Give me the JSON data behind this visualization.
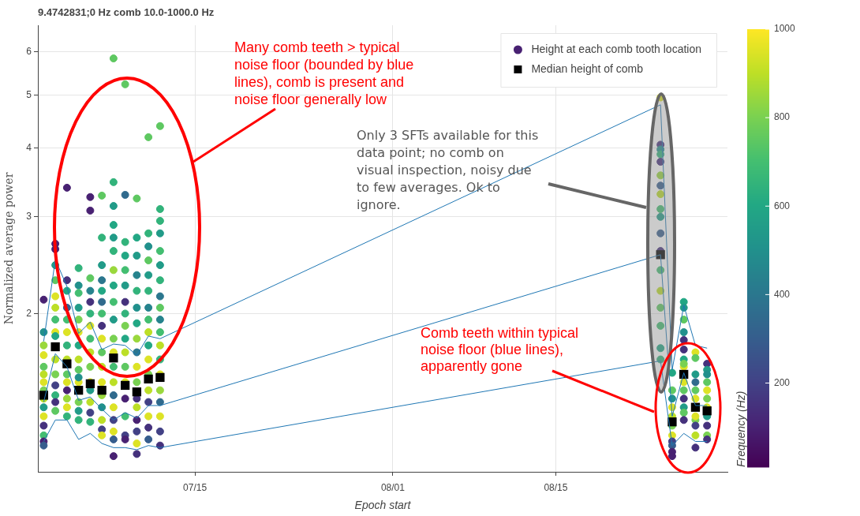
{
  "chart_data": {
    "type": "scatter",
    "title": "9.4742831;0 Hz comb 10.0-1000.0 Hz",
    "xlabel": "Epoch start",
    "ylabel": "Normalized average power",
    "clabel": "Frequency (Hz)",
    "log": "y",
    "grid": true,
    "legend": "top right",
    "xlim": [
      "--07-01T12:00",
      "--08-29T18:00"
    ],
    "xticks": [
      {
        "value": "--07-15",
        "label": "07/15"
      },
      {
        "value": "--08-01",
        "label": "08/01"
      },
      {
        "value": "--08-15",
        "label": "08/15"
      }
    ],
    "ylim": [
      1.03,
      6.7
    ],
    "yticks": [
      2,
      3,
      4,
      5,
      6
    ],
    "clim": [
      10,
      1000
    ],
    "cticks": [
      200,
      400,
      600,
      800,
      1000
    ],
    "annotations": [
      "Many comb teeth > typical noise floor (bounded by blue lines), comb is present and noise floor generally low",
      "Only 3 SFTs available for this data point; no comb on visual inspection, noisy due to few averages. Ok to ignore.",
      "Comb teeth within typical noise floor (blue lines), apparently gone"
    ],
    "series": [
      {
        "name": "Height at each comb tooth location",
        "type": "scatter",
        "marker": "circle",
        "x": [
          "--07-02",
          "--07-02",
          "--07-02",
          "--07-02",
          "--07-02",
          "--07-02",
          "--07-02",
          "--07-02",
          "--07-02",
          "--07-02",
          "--07-02",
          "--07-02",
          "--07-02",
          "--07-02",
          "--07-02",
          "--07-03",
          "--07-03",
          "--07-03",
          "--07-03",
          "--07-03",
          "--07-03",
          "--07-03",
          "--07-03",
          "--07-03",
          "--07-03",
          "--07-03",
          "--07-03",
          "--07-03",
          "--07-03",
          "--07-03",
          "--07-04",
          "--07-04",
          "--07-04",
          "--07-04",
          "--07-04",
          "--07-04",
          "--07-04",
          "--07-04",
          "--07-04",
          "--07-04",
          "--07-04",
          "--07-04",
          "--07-04",
          "--07-04",
          "--07-05",
          "--07-05",
          "--07-05",
          "--07-05",
          "--07-05",
          "--07-05",
          "--07-05",
          "--07-05",
          "--07-05",
          "--07-05",
          "--07-05",
          "--07-05",
          "--07-05",
          "--07-05",
          "--07-06",
          "--07-06",
          "--07-06",
          "--07-06",
          "--07-06",
          "--07-06",
          "--07-06",
          "--07-06",
          "--07-06",
          "--07-06",
          "--07-06",
          "--07-06",
          "--07-06",
          "--07-06",
          "--07-06",
          "--07-07",
          "--07-07",
          "--07-07",
          "--07-07",
          "--07-07",
          "--07-07",
          "--07-07",
          "--07-07",
          "--07-07",
          "--07-07",
          "--07-07",
          "--07-07",
          "--07-07",
          "--07-07",
          "--07-07",
          "--07-07",
          "--07-07",
          "--07-08",
          "--07-08",
          "--07-08",
          "--07-08",
          "--07-08",
          "--07-08",
          "--07-08",
          "--07-08",
          "--07-08",
          "--07-08",
          "--07-08",
          "--07-08",
          "--07-08",
          "--07-08",
          "--07-08",
          "--07-08",
          "--07-08",
          "--07-08",
          "--07-08",
          "--07-08",
          "--07-09",
          "--07-09",
          "--07-09",
          "--07-09",
          "--07-09",
          "--07-09",
          "--07-09",
          "--07-09",
          "--07-09",
          "--07-09",
          "--07-09",
          "--07-09",
          "--07-09",
          "--07-09",
          "--07-09",
          "--07-09",
          "--07-09",
          "--07-10",
          "--07-10",
          "--07-10",
          "--07-10",
          "--07-10",
          "--07-10",
          "--07-10",
          "--07-10",
          "--07-10",
          "--07-10",
          "--07-10",
          "--07-10",
          "--07-10",
          "--07-10",
          "--07-10",
          "--07-10",
          "--07-10",
          "--07-11",
          "--07-11",
          "--07-11",
          "--07-11",
          "--07-11",
          "--07-11",
          "--07-11",
          "--07-11",
          "--07-11",
          "--07-11",
          "--07-11",
          "--07-11",
          "--07-11",
          "--07-11",
          "--07-11",
          "--07-11",
          "--07-11",
          "--07-12",
          "--07-12",
          "--07-12",
          "--07-12",
          "--07-12",
          "--07-12",
          "--07-12",
          "--07-12",
          "--07-12",
          "--07-12",
          "--07-12",
          "--07-12",
          "--07-12",
          "--07-12",
          "--07-12",
          "--07-12",
          "--07-12",
          "--07-12",
          "--07-12",
          "--08-24",
          "--08-24",
          "--08-24",
          "--08-24",
          "--08-24",
          "--08-24",
          "--08-24",
          "--08-24",
          "--08-24",
          "--08-24",
          "--08-24",
          "--08-24",
          "--08-24",
          "--08-24",
          "--08-24",
          "--08-24",
          "--08-24",
          "--08-24",
          "--08-25",
          "--08-25",
          "--08-25",
          "--08-25",
          "--08-25",
          "--08-25",
          "--08-25",
          "--08-25",
          "--08-25",
          "--08-25",
          "--08-25",
          "--08-26",
          "--08-26",
          "--08-26",
          "--08-26",
          "--08-26",
          "--08-26",
          "--08-26",
          "--08-26",
          "--08-26",
          "--08-26",
          "--08-26",
          "--08-26",
          "--08-26",
          "--08-26",
          "--08-26",
          "--08-27",
          "--08-27",
          "--08-27",
          "--08-27",
          "--08-27",
          "--08-27",
          "--08-27",
          "--08-27",
          "--08-27",
          "--08-27",
          "--08-27",
          "--08-28",
          "--08-28",
          "--08-28",
          "--08-28",
          "--08-28",
          "--08-28",
          "--08-28",
          "--08-28",
          "--08-28",
          "--08-28",
          "--08-28"
        ],
        "values": [
          2.12,
          1.85,
          1.75,
          1.68,
          1.6,
          1.55,
          1.5,
          1.45,
          1.4,
          1.35,
          1.3,
          1.25,
          1.2,
          1.17,
          1.15,
          2.68,
          2.62,
          2.45,
          2.3,
          2.15,
          2.05,
          1.95,
          1.85,
          1.82,
          1.65,
          1.55,
          1.48,
          1.42,
          1.38,
          1.33,
          3.39,
          2.3,
          2.2,
          2.05,
          1.95,
          1.85,
          1.75,
          1.65,
          1.55,
          1.5,
          1.45,
          1.4,
          1.35,
          1.3,
          2.42,
          2.25,
          2.18,
          2.05,
          1.95,
          1.85,
          1.75,
          1.65,
          1.58,
          1.5,
          1.53,
          1.38,
          1.33,
          1.28,
          3.26,
          3.08,
          2.32,
          2.2,
          2.1,
          2.0,
          1.9,
          1.8,
          1.7,
          1.6,
          1.5,
          1.45,
          1.38,
          1.32,
          1.27,
          3.28,
          2.75,
          2.45,
          2.3,
          2.2,
          2.1,
          2.0,
          1.9,
          1.8,
          1.7,
          1.6,
          1.5,
          1.42,
          1.35,
          1.28,
          1.23,
          1.2,
          5.83,
          3.47,
          3.14,
          2.9,
          2.75,
          2.6,
          2.4,
          2.25,
          2.1,
          1.95,
          1.8,
          1.7,
          1.6,
          1.5,
          1.42,
          1.35,
          1.28,
          1.22,
          1.18,
          1.1,
          5.23,
          3.29,
          2.7,
          2.55,
          2.4,
          2.25,
          2.1,
          2.0,
          1.9,
          1.8,
          1.7,
          1.6,
          1.5,
          1.4,
          1.3,
          1.2,
          1.18,
          3.24,
          2.75,
          2.55,
          2.35,
          2.2,
          2.05,
          1.92,
          1.8,
          1.7,
          1.6,
          1.5,
          1.4,
          1.35,
          1.28,
          1.22,
          1.16,
          1.11,
          4.19,
          2.8,
          2.65,
          2.5,
          2.35,
          2.2,
          2.05,
          1.95,
          1.85,
          1.75,
          1.65,
          1.55,
          1.45,
          1.38,
          1.3,
          1.24,
          1.18,
          4.39,
          3.1,
          2.95,
          2.8,
          2.6,
          2.45,
          2.3,
          2.15,
          2.05,
          1.95,
          1.85,
          1.75,
          1.65,
          1.55,
          1.45,
          1.38,
          1.3,
          1.22,
          1.15,
          4.95,
          4.06,
          3.98,
          3.9,
          3.78,
          3.57,
          3.42,
          3.3,
          3.1,
          3.0,
          2.8,
          2.6,
          2.4,
          2.2,
          2.05,
          1.9,
          1.73,
          1.65,
          1.56,
          1.45,
          1.4,
          1.35,
          1.3,
          1.25,
          1.2,
          1.17,
          1.15,
          1.12,
          1.1,
          2.1,
          2.05,
          1.95,
          1.85,
          1.79,
          1.72,
          1.65,
          1.6,
          1.62,
          1.5,
          1.45,
          1.4,
          1.35,
          1.32,
          1.28,
          1.7,
          1.66,
          1.55,
          1.5,
          1.45,
          1.4,
          1.28,
          1.3,
          1.25,
          1.2,
          1.14,
          1.62,
          1.58,
          1.55,
          1.5,
          1.45,
          1.4,
          1.35,
          1.3,
          1.25,
          1.2,
          1.18
        ],
        "cvalues": [
          100,
          500,
          850,
          950,
          750,
          900,
          950,
          800,
          900,
          550,
          950,
          150,
          700,
          100,
          300,
          100,
          100,
          550,
          750,
          950,
          900,
          700,
          950,
          600,
          900,
          800,
          200,
          650,
          150,
          750,
          100,
          150,
          600,
          300,
          700,
          950,
          650,
          900,
          750,
          950,
          100,
          850,
          950,
          650,
          650,
          500,
          700,
          550,
          800,
          950,
          600,
          900,
          750,
          950,
          500,
          800,
          550,
          650,
          100,
          100,
          750,
          450,
          150,
          650,
          950,
          700,
          900,
          800,
          950,
          550,
          900,
          200,
          650,
          750,
          650,
          550,
          400,
          600,
          350,
          700,
          150,
          950,
          750,
          900,
          950,
          850,
          500,
          900,
          200,
          950,
          750,
          650,
          550,
          600,
          550,
          650,
          850,
          600,
          700,
          550,
          800,
          950,
          700,
          900,
          350,
          950,
          200,
          950,
          300,
          100,
          750,
          350,
          650,
          600,
          700,
          550,
          150,
          650,
          800,
          600,
          900,
          750,
          950,
          100,
          700,
          200,
          100,
          750,
          600,
          550,
          450,
          650,
          500,
          600,
          850,
          400,
          950,
          800,
          150,
          900,
          100,
          200,
          950,
          150,
          750,
          650,
          500,
          750,
          550,
          650,
          450,
          700,
          900,
          600,
          950,
          800,
          900,
          200,
          950,
          150,
          300,
          750,
          650,
          650,
          550,
          700,
          550,
          650,
          400,
          750,
          450,
          700,
          900,
          650,
          950,
          850,
          350,
          950,
          200,
          150,
          950,
          150,
          500,
          650,
          150,
          850,
          300,
          900,
          700,
          550,
          300,
          150,
          700,
          900,
          750,
          700,
          600,
          650,
          600,
          750,
          500,
          950,
          900,
          800,
          950,
          200,
          300,
          100,
          100,
          600,
          550,
          750,
          500,
          150,
          150,
          600,
          950,
          800,
          950,
          750,
          150,
          550,
          750,
          150,
          950,
          750,
          550,
          350,
          750,
          950,
          800,
          950,
          200,
          900,
          150,
          150,
          550,
          500,
          750,
          950,
          800,
          950,
          550,
          150,
          800,
          150
        ],
        "colors": [
          "#482172",
          "#21908c",
          "#9ad83c",
          "#dde325",
          "#5ec861",
          "#bcdf26",
          "#dde325",
          "#79d152",
          "#bcdf26",
          "#219b88",
          "#dde325",
          "#45317c",
          "#43be71",
          "#482172",
          "#365d8d",
          "#482172",
          "#482172",
          "#219b88",
          "#5ec861",
          "#dde325",
          "#bcdf26",
          "#43be71",
          "#dde325",
          "#22a784",
          "#bcdf26",
          "#79d152",
          "#424185",
          "#32b37b",
          "#45317c",
          "#5ec861",
          "#482172",
          "#45317c",
          "#22a784",
          "#365d8d",
          "#43be71",
          "#dde325",
          "#32b37b",
          "#bcdf26",
          "#5ec861",
          "#dde325",
          "#482172",
          "#9ad83c",
          "#dde325",
          "#32b37b",
          "#32b37b",
          "#21908c",
          "#43be71",
          "#219b88",
          "#79d152",
          "#dde325",
          "#22a784",
          "#bcdf26",
          "#5ec861",
          "#dde325",
          "#21908c",
          "#79d152",
          "#219b88",
          "#32b37b",
          "#482172",
          "#482172",
          "#5ec861",
          "#26838d",
          "#45317c",
          "#32b37b",
          "#dde325",
          "#43be71",
          "#bcdf26",
          "#79d152",
          "#dde325",
          "#219b88",
          "#bcdf26",
          "#424185",
          "#32b37b",
          "#5ec861",
          "#32b37b",
          "#219b88",
          "#2b778e",
          "#22a784",
          "#306a8d",
          "#43be71",
          "#45317c",
          "#dde325",
          "#5ec861",
          "#bcdf26",
          "#dde325",
          "#9ad83c",
          "#21908c",
          "#bcdf26",
          "#424185",
          "#dde325",
          "#5ec861",
          "#32b37b",
          "#219b88",
          "#22a784",
          "#219b88",
          "#32b37b",
          "#9ad83c",
          "#22a784",
          "#43be71",
          "#219b88",
          "#79d152",
          "#dde325",
          "#43be71",
          "#bcdf26",
          "#306a8d",
          "#dde325",
          "#424185",
          "#dde325",
          "#365d8d",
          "#482172",
          "#5ec861",
          "#306a8d",
          "#32b37b",
          "#22a784",
          "#43be71",
          "#219b88",
          "#45317c",
          "#32b37b",
          "#79d152",
          "#22a784",
          "#bcdf26",
          "#5ec861",
          "#dde325",
          "#482172",
          "#43be71",
          "#424185",
          "#482172",
          "#5ec861",
          "#22a784",
          "#219b88",
          "#26838d",
          "#32b37b",
          "#21908c",
          "#22a784",
          "#9ad83c",
          "#2b778e",
          "#dde325",
          "#79d152",
          "#45317c",
          "#bcdf26",
          "#482172",
          "#424185",
          "#dde325",
          "#45317c",
          "#5ec861",
          "#32b37b",
          "#21908c",
          "#5ec861",
          "#219b88",
          "#32b37b",
          "#26838d",
          "#43be71",
          "#bcdf26",
          "#22a784",
          "#dde325",
          "#79d152",
          "#bcdf26",
          "#424185",
          "#dde325",
          "#45317c",
          "#365d8d",
          "#5ec861",
          "#32b37b",
          "#32b37b",
          "#219b88",
          "#43be71",
          "#219b88",
          "#32b37b",
          "#2b778e",
          "#5ec861",
          "#26838d",
          "#43be71",
          "#bcdf26",
          "#32b37b",
          "#dde325",
          "#9ad83c",
          "#306a8d",
          "#dde325",
          "#424185",
          "#45317c",
          "#dde325",
          "#45317c",
          "#21908c",
          "#32b37b",
          "#45317c",
          "#9ad83c",
          "#365d8d",
          "#bcdf26",
          "#43be71",
          "#219b88",
          "#365d8d",
          "#45317c",
          "#43be71",
          "#bcdf26",
          "#5ec861",
          "#43be71",
          "#22a784",
          "#32b37b",
          "#22a784",
          "#5ec861",
          "#21908c",
          "#dde325",
          "#bcdf26",
          "#79d152",
          "#dde325",
          "#424185",
          "#365d8d",
          "#482172",
          "#482172",
          "#22a784",
          "#219b88",
          "#5ec861",
          "#21908c",
          "#45317c",
          "#45317c",
          "#22a784",
          "#dde325",
          "#79d152",
          "#dde325",
          "#5ec861",
          "#45317c",
          "#219b88",
          "#5ec861",
          "#45317c",
          "#dde325",
          "#5ec861",
          "#219b88",
          "#306a8d",
          "#5ec861",
          "#dde325",
          "#79d152",
          "#dde325",
          "#424185",
          "#bcdf26",
          "#45317c",
          "#45317c",
          "#219b88",
          "#21908c",
          "#5ec861",
          "#dde325",
          "#79d152",
          "#dde325",
          "#219b88",
          "#45317c",
          "#79d152",
          "#45317c"
        ]
      },
      {
        "type": "line",
        "color": "#1f77b4",
        "marker": "none",
        "x": [
          "--07-02",
          "--07-03",
          "--07-04",
          "--07-05",
          "--07-06",
          "--07-07",
          "--07-08",
          "--07-09",
          "--07-10",
          "--07-11",
          "--07-12",
          "--08-24",
          "--08-25",
          "--08-26",
          "--08-27",
          "--08-28"
        ],
        "values": [
          1.78,
          2.51,
          2.24,
          1.84,
          1.93,
          1.72,
          1.76,
          1.75,
          1.68,
          1.82,
          1.8,
          4.8,
          1.58,
          2.07,
          1.75,
          1.73
        ]
      },
      {
        "type": "line",
        "color": "#1f77b4",
        "marker": "none",
        "x": [
          "--07-02",
          "--07-03",
          "--07-04",
          "--07-05",
          "--07-06",
          "--07-07",
          "--07-08",
          "--07-09",
          "--07-10",
          "--07-11",
          "--07-12",
          "--08-24",
          "--08-25",
          "--08-26",
          "--08-27",
          "--08-28"
        ],
        "values": [
          1.38,
          1.69,
          1.6,
          1.39,
          1.41,
          1.34,
          1.28,
          1.32,
          1.29,
          1.36,
          1.36,
          2.56,
          1.3,
          1.56,
          1.36,
          1.36
        ]
      },
      {
        "type": "line",
        "color": "#1f77b4",
        "marker": "none",
        "x": [
          "--07-02",
          "--07-03",
          "--07-04",
          "--07-05",
          "--07-06",
          "--07-07",
          "--07-08",
          "--07-09",
          "--07-10",
          "--07-11",
          "--07-12",
          "--08-24",
          "--08-25",
          "--08-26",
          "--08-27",
          "--08-28"
        ],
        "values": [
          1.17,
          1.28,
          1.28,
          1.18,
          1.21,
          1.16,
          1.14,
          1.14,
          1.13,
          1.15,
          1.14,
          1.64,
          1.15,
          1.21,
          1.17,
          1.17
        ]
      },
      {
        "name": "Median height of comb",
        "type": "scatter",
        "marker": "square",
        "color": "#000000",
        "x": [
          "--07-02",
          "--07-03",
          "--07-04",
          "--07-05",
          "--07-06",
          "--07-07",
          "--07-08",
          "--07-09",
          "--07-10",
          "--07-11",
          "--07-12",
          "--08-24",
          "--08-25",
          "--08-26",
          "--08-27",
          "--08-28"
        ],
        "values": [
          1.42,
          1.74,
          1.62,
          1.45,
          1.49,
          1.45,
          1.66,
          1.48,
          1.44,
          1.52,
          1.53,
          2.56,
          1.27,
          1.55,
          1.35,
          1.33
        ]
      }
    ]
  }
}
